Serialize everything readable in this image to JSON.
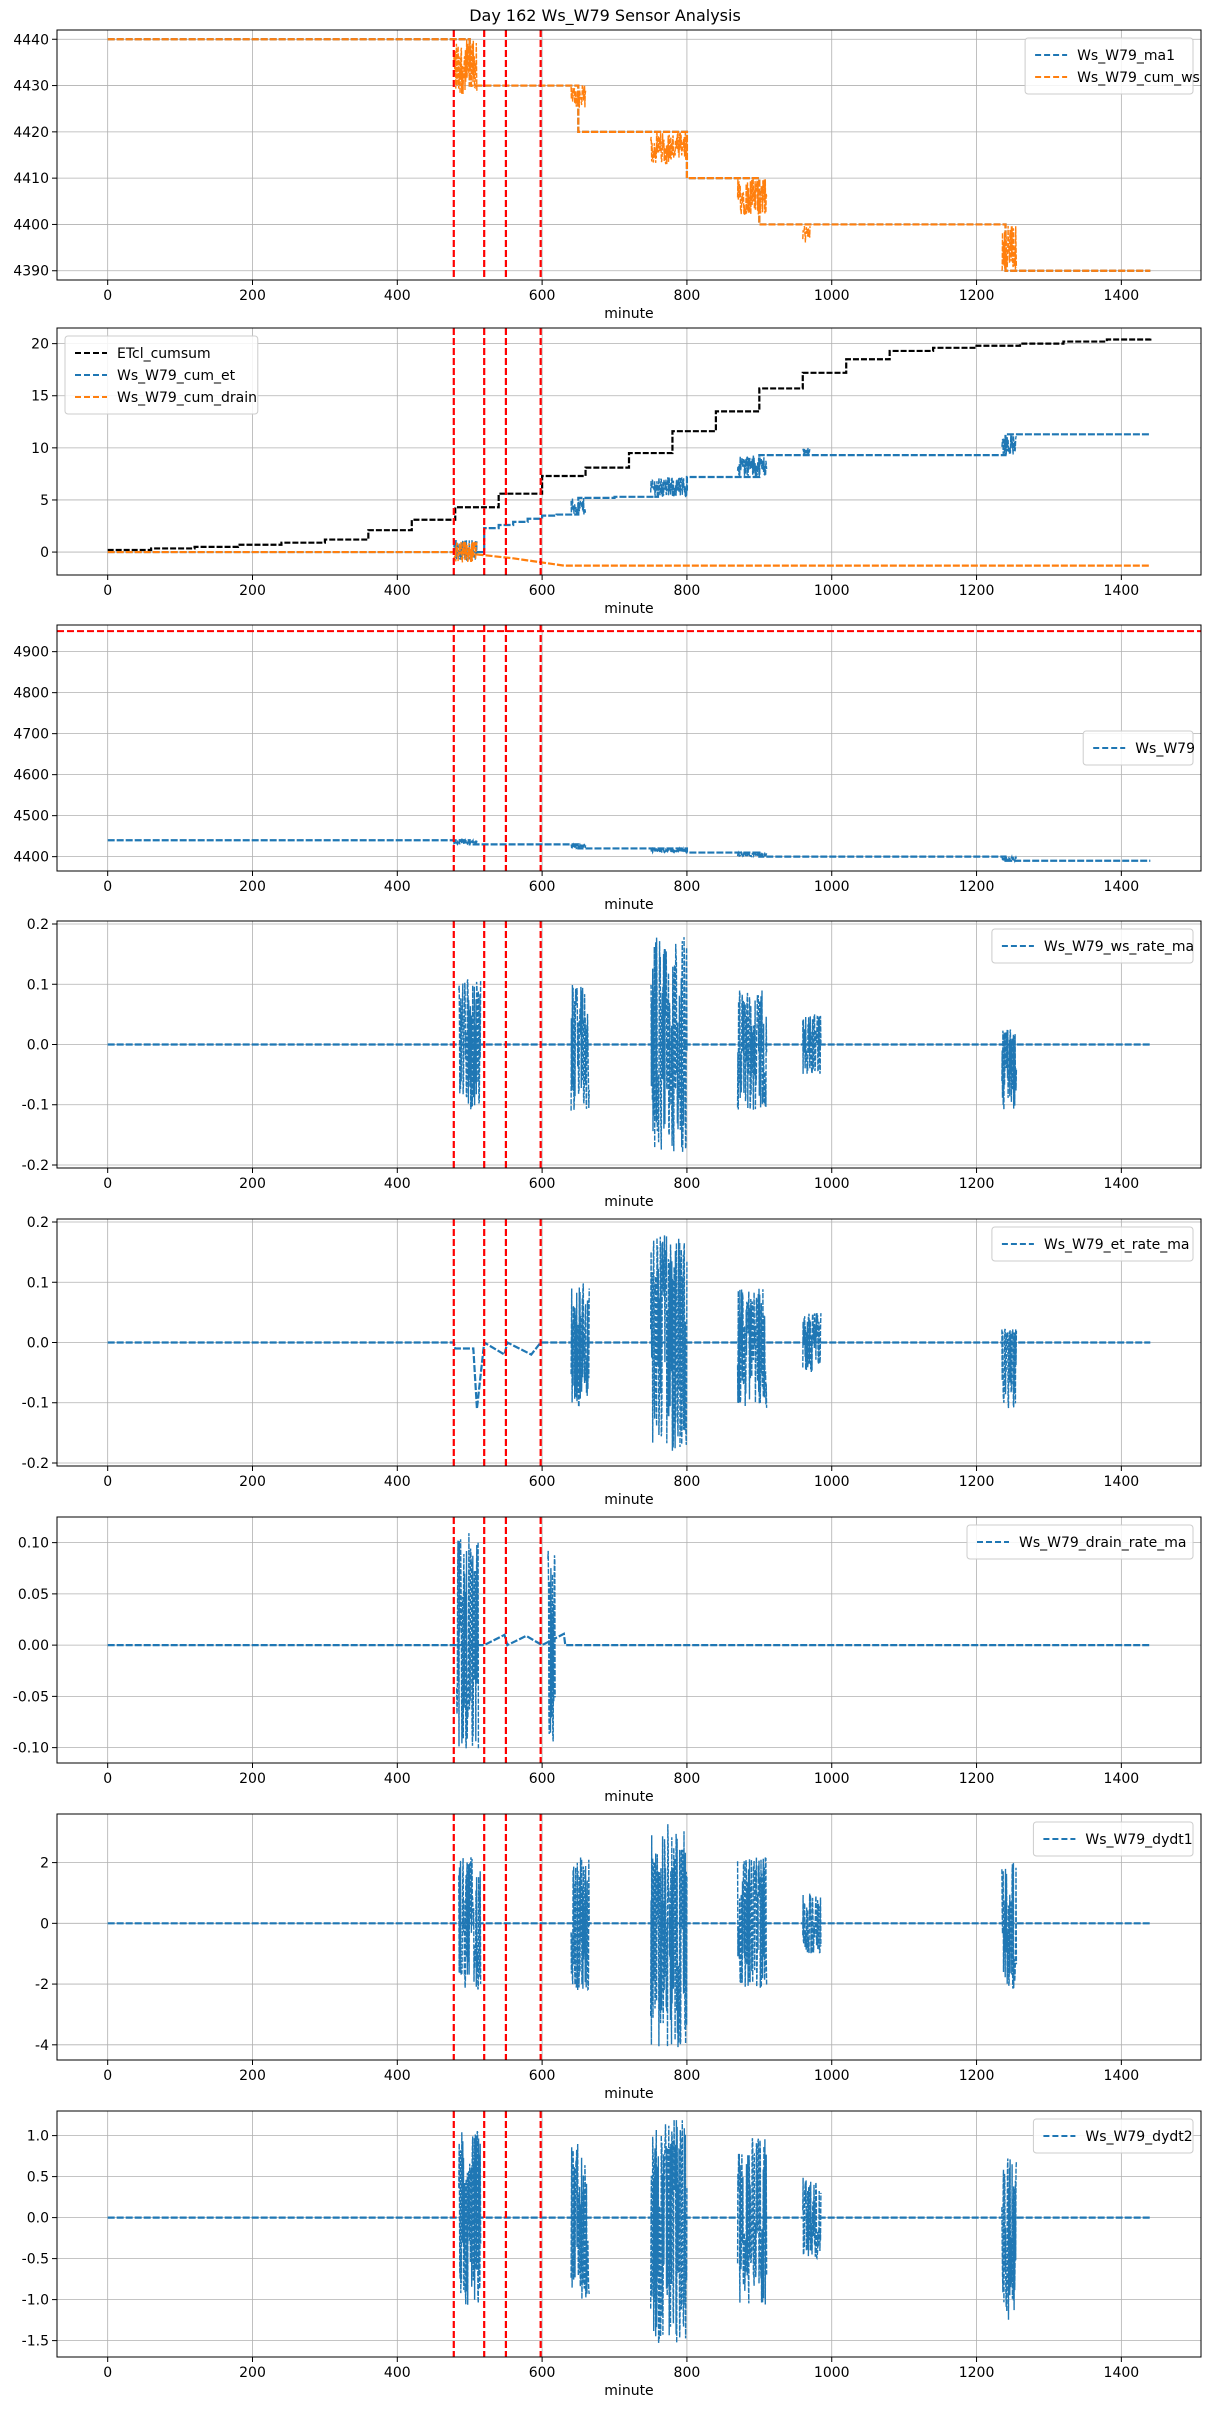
{
  "figure": {
    "title": "Day 162 Ws_W79 Sensor Analysis"
  },
  "colors": {
    "blue": "#1f77b4",
    "orange": "#ff7f0e",
    "black": "#000000",
    "red": "#ff0000",
    "grid": "#b0b0b0"
  },
  "chart_data": [
    {
      "type": "line",
      "xlabel": "minute",
      "ylabel": "",
      "xlim": [
        -70,
        1510
      ],
      "ylim": [
        4388,
        4442
      ],
      "xticks": [
        0,
        200,
        400,
        600,
        800,
        1000,
        1200,
        1400
      ],
      "yticks": [
        4390,
        4400,
        4410,
        4420,
        4430,
        4440
      ],
      "yticklabels": [
        "4390",
        "4400",
        "4410",
        "4420",
        "4430",
        "4440"
      ],
      "grid": true,
      "legend_position": "top-right",
      "vlines": [
        478,
        520,
        550,
        598
      ],
      "hlines": [],
      "series": [
        {
          "name": "Ws_W79_ma1",
          "color": "blue",
          "kind": "step",
          "x": [
            0,
            478,
            500,
            650,
            800,
            900,
            1240,
            1440
          ],
          "y": [
            4440,
            4440,
            4430,
            4420,
            4410,
            4400,
            4390,
            4390
          ]
        },
        {
          "name": "Ws_W79_cum_ws",
          "color": "orange",
          "kind": "step",
          "x": [
            0,
            478,
            500,
            650,
            800,
            900,
            1240,
            1440
          ],
          "y": [
            4440,
            4440,
            4430,
            4420,
            4410,
            4400,
            4390,
            4390
          ],
          "noise": [
            [
              478,
              510,
              4428,
              4440
            ],
            [
              640,
              660,
              4425,
              4430
            ],
            [
              750,
              800,
              4413,
              4420
            ],
            [
              870,
              910,
              4402,
              4410
            ],
            [
              960,
              970,
              4396,
              4400
            ],
            [
              1235,
              1255,
              4390,
              4400
            ]
          ]
        }
      ]
    },
    {
      "type": "line",
      "xlabel": "minute",
      "ylabel": "",
      "xlim": [
        -70,
        1510
      ],
      "ylim": [
        -2.2,
        21.5
      ],
      "xticks": [
        0,
        200,
        400,
        600,
        800,
        1000,
        1200,
        1400
      ],
      "yticks": [
        0,
        5,
        10,
        15,
        20
      ],
      "yticklabels": [
        "0",
        "5",
        "10",
        "15",
        "20"
      ],
      "grid": true,
      "legend_position": "top-left",
      "vlines": [
        478,
        520,
        550,
        598
      ],
      "hlines": [],
      "series": [
        {
          "name": "ETcl_cumsum",
          "color": "black",
          "kind": "step",
          "x": [
            0,
            60,
            120,
            180,
            240,
            300,
            360,
            420,
            480,
            540,
            600,
            660,
            720,
            780,
            840,
            900,
            960,
            1020,
            1080,
            1140,
            1200,
            1260,
            1320,
            1380,
            1440
          ],
          "y": [
            0.2,
            0.35,
            0.5,
            0.7,
            0.9,
            1.2,
            2.1,
            3.1,
            4.3,
            5.6,
            7.3,
            8.1,
            9.5,
            11.6,
            13.5,
            15.7,
            17.2,
            18.5,
            19.3,
            19.6,
            19.8,
            20.0,
            20.2,
            20.4,
            20.5
          ]
        },
        {
          "name": "Ws_W79_cum_et",
          "color": "blue",
          "kind": "step",
          "x": [
            0,
            478,
            520,
            540,
            560,
            580,
            600,
            620,
            650,
            700,
            760,
            800,
            900,
            1000,
            1240,
            1440
          ],
          "y": [
            0,
            0,
            2.3,
            2.6,
            2.9,
            3.2,
            3.5,
            3.6,
            5.2,
            5.3,
            6.0,
            7.2,
            9.3,
            9.3,
            11.3,
            11.3
          ],
          "noise": [
            [
              478,
              510,
              -0.8,
              1.2
            ],
            [
              640,
              660,
              3.5,
              5.2
            ],
            [
              750,
              800,
              5.2,
              7.2
            ],
            [
              870,
              910,
              7.2,
              9.3
            ],
            [
              960,
              970,
              9.3,
              10.0
            ],
            [
              1235,
              1255,
              9.3,
              11.3
            ]
          ]
        },
        {
          "name": "Ws_W79_cum_drain",
          "color": "orange",
          "kind": "line",
          "x": [
            0,
            478,
            520,
            560,
            600,
            630,
            1440
          ],
          "y": [
            0,
            0,
            -0.3,
            -0.6,
            -1.0,
            -1.3,
            -1.3
          ],
          "noise": [
            [
              478,
              510,
              -1.0,
              1.0
            ]
          ]
        }
      ]
    },
    {
      "type": "line",
      "xlabel": "minute",
      "ylabel": "",
      "xlim": [
        -70,
        1510
      ],
      "ylim": [
        4365,
        4965
      ],
      "xticks": [
        0,
        200,
        400,
        600,
        800,
        1000,
        1200,
        1400
      ],
      "yticks": [
        4400,
        4500,
        4600,
        4700,
        4800,
        4900
      ],
      "yticklabels": [
        "4400",
        "4500",
        "4600",
        "4700",
        "4800",
        "4900"
      ],
      "grid": true,
      "legend_position": "center-right",
      "vlines": [
        478,
        520,
        550,
        598
      ],
      "hlines": [
        4950
      ],
      "series": [
        {
          "name": "Ws_W79",
          "color": "blue",
          "kind": "step",
          "x": [
            0,
            478,
            500,
            650,
            800,
            900,
            1240,
            1440
          ],
          "y": [
            4440,
            4440,
            4430,
            4420,
            4410,
            4400,
            4390,
            4390
          ],
          "noise": [
            [
              478,
              510,
              4430,
              4440
            ],
            [
              640,
              660,
              4420,
              4430
            ],
            [
              750,
              800,
              4410,
              4420
            ],
            [
              870,
              910,
              4400,
              4410
            ],
            [
              1235,
              1255,
              4390,
              4400
            ]
          ]
        }
      ]
    },
    {
      "type": "line",
      "xlabel": "minute",
      "ylabel": "",
      "xlim": [
        -70,
        1510
      ],
      "ylim": [
        -0.205,
        0.205
      ],
      "xticks": [
        0,
        200,
        400,
        600,
        800,
        1000,
        1200,
        1400
      ],
      "yticks": [
        -0.2,
        -0.1,
        0.0,
        0.1,
        0.2
      ],
      "yticklabels": [
        "-0.2",
        "-0.1",
        "0.0",
        "0.1",
        "0.2"
      ],
      "grid": true,
      "legend_position": "top-right",
      "vlines": [
        478,
        520,
        550,
        598
      ],
      "hlines": [],
      "series": [
        {
          "name": "Ws_W79_ws_rate_ma",
          "color": "blue",
          "kind": "line",
          "x": [
            0,
            1440
          ],
          "y": [
            0,
            0
          ],
          "noise": [
            [
              485,
              515,
              -0.11,
              0.11
            ],
            [
              640,
              665,
              -0.11,
              0.1
            ],
            [
              750,
              800,
              -0.18,
              0.18
            ],
            [
              870,
              910,
              -0.11,
              0.09
            ],
            [
              960,
              985,
              -0.05,
              0.05
            ],
            [
              1235,
              1255,
              -0.11,
              0.025
            ]
          ]
        }
      ]
    },
    {
      "type": "line",
      "xlabel": "minute",
      "ylabel": "",
      "xlim": [
        -70,
        1510
      ],
      "ylim": [
        -0.205,
        0.205
      ],
      "xticks": [
        0,
        200,
        400,
        600,
        800,
        1000,
        1200,
        1400
      ],
      "yticks": [
        -0.2,
        -0.1,
        0.0,
        0.1,
        0.2
      ],
      "yticklabels": [
        "-0.2",
        "-0.1",
        "0.0",
        "0.1",
        "0.2"
      ],
      "grid": true,
      "legend_position": "top-right",
      "vlines": [
        478,
        520,
        550,
        598
      ],
      "hlines": [],
      "series": [
        {
          "name": "Ws_W79_et_rate_ma",
          "color": "blue",
          "kind": "line",
          "x": [
            0,
            478,
            480,
            505,
            510,
            520,
            548,
            552,
            585,
            598,
            600,
            1440
          ],
          "y": [
            0,
            0,
            -0.01,
            -0.01,
            -0.11,
            0.0,
            -0.02,
            0.0,
            -0.02,
            0.0,
            0.0,
            0.0
          ],
          "noise": [
            [
              640,
              665,
              -0.11,
              0.1
            ],
            [
              750,
              800,
              -0.18,
              0.18
            ],
            [
              870,
              910,
              -0.11,
              0.09
            ],
            [
              960,
              985,
              -0.05,
              0.05
            ],
            [
              1235,
              1255,
              -0.11,
              0.025
            ]
          ]
        }
      ]
    },
    {
      "type": "line",
      "xlabel": "minute",
      "ylabel": "",
      "xlim": [
        -70,
        1510
      ],
      "ylim": [
        -0.115,
        0.125
      ],
      "xticks": [
        0,
        200,
        400,
        600,
        800,
        1000,
        1200,
        1400
      ],
      "yticks": [
        -0.1,
        -0.05,
        0.0,
        0.05,
        0.1
      ],
      "yticklabels": [
        "-0.10",
        "-0.05",
        "0.00",
        "0.05",
        "0.10"
      ],
      "grid": true,
      "legend_position": "top-right",
      "vlines": [
        478,
        520,
        550,
        598
      ],
      "hlines": [],
      "series": [
        {
          "name": "Ws_W79_drain_rate_ma",
          "color": "blue",
          "kind": "line",
          "x": [
            0,
            478,
            520,
            548,
            552,
            578,
            600,
            630,
            632,
            1440
          ],
          "y": [
            0,
            0,
            0.0,
            0.01,
            0.0,
            0.009,
            0.0,
            0.011,
            0.0,
            0.0
          ],
          "noise": [
            [
              482,
              512,
              -0.105,
              0.11
            ],
            [
              608,
              618,
              -0.1,
              0.11
            ]
          ]
        }
      ]
    },
    {
      "type": "line",
      "xlabel": "minute",
      "ylabel": "",
      "xlim": [
        -70,
        1510
      ],
      "ylim": [
        -4.5,
        3.6
      ],
      "xticks": [
        0,
        200,
        400,
        600,
        800,
        1000,
        1200,
        1400
      ],
      "yticks": [
        -4,
        -2,
        0,
        2
      ],
      "yticklabels": [
        "-4",
        "-2",
        "0",
        "2"
      ],
      "grid": true,
      "legend_position": "top-right",
      "vlines": [
        478,
        520,
        550,
        598
      ],
      "hlines": [],
      "series": [
        {
          "name": "Ws_W79_dydt1",
          "color": "blue",
          "kind": "line",
          "x": [
            0,
            1440
          ],
          "y": [
            0,
            0
          ],
          "noise": [
            [
              485,
              515,
              -2.2,
              2.2
            ],
            [
              640,
              665,
              -2.2,
              2.2
            ],
            [
              750,
              800,
              -4.1,
              3.3
            ],
            [
              870,
              910,
              -2.2,
              2.2
            ],
            [
              960,
              985,
              -1.0,
              1.0
            ],
            [
              1235,
              1255,
              -2.2,
              2.0
            ]
          ]
        }
      ]
    },
    {
      "type": "line",
      "xlabel": "minute",
      "ylabel": "",
      "xlim": [
        -70,
        1510
      ],
      "ylim": [
        -1.7,
        1.3
      ],
      "xticks": [
        0,
        200,
        400,
        600,
        800,
        1000,
        1200,
        1400
      ],
      "yticks": [
        -1.5,
        -1.0,
        -0.5,
        0.0,
        0.5,
        1.0
      ],
      "yticklabels": [
        "-1.5",
        "-1.0",
        "-0.5",
        "0.0",
        "0.5",
        "1.0"
      ],
      "grid": true,
      "legend_position": "top-right",
      "vlines": [
        478,
        520,
        550,
        598
      ],
      "hlines": [],
      "series": [
        {
          "name": "Ws_W79_dydt2",
          "color": "blue",
          "kind": "line",
          "x": [
            0,
            1440
          ],
          "y": [
            0,
            0
          ],
          "noise": [
            [
              485,
              515,
              -1.1,
              1.1
            ],
            [
              640,
              665,
              -1.0,
              0.95
            ],
            [
              750,
              800,
              -1.55,
              1.2
            ],
            [
              870,
              910,
              -1.1,
              1.0
            ],
            [
              960,
              985,
              -0.5,
              0.5
            ],
            [
              1235,
              1255,
              -1.25,
              0.8
            ]
          ]
        }
      ]
    }
  ]
}
